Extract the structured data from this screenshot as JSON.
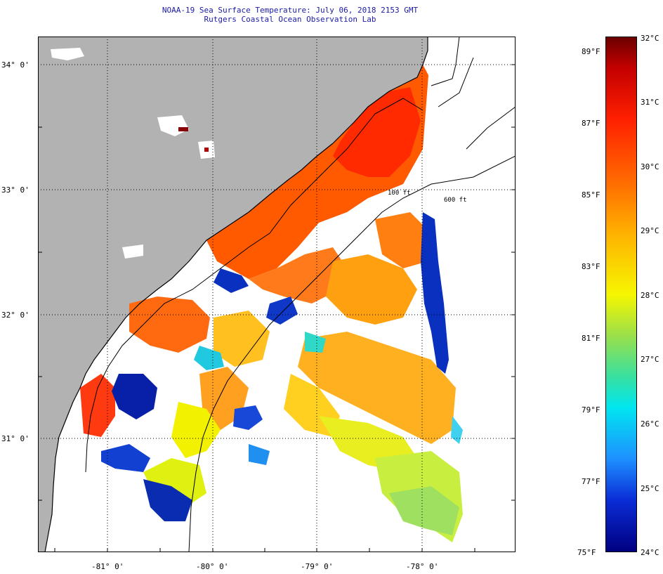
{
  "title": {
    "line1": "NOAA-19 Sea Surface Temperature:  July 06, 2018 2153 GMT",
    "line2": "Rutgers Coastal Ocean Observation Lab"
  },
  "map": {
    "lat_labels": [
      "34° 0'",
      "33° 0'",
      "32° 0'",
      "31° 0'"
    ],
    "lon_labels": [
      "-81° 0'",
      "-80° 0'",
      "-79° 0'",
      "-78° 0'"
    ],
    "isobaths": [
      "100 ft",
      "600 ft"
    ],
    "colors": {
      "land": "#b2b2b2",
      "no_data": "#ffffff",
      "coastline": "#000000"
    }
  },
  "colorbar": {
    "celsius": [
      "32°C",
      "31°C",
      "30°C",
      "29°C",
      "28°C",
      "27°C",
      "26°C",
      "25°C",
      "24°C"
    ],
    "fahrenheit": [
      "89°F",
      "87°F",
      "85°F",
      "83°F",
      "81°F",
      "79°F",
      "77°F",
      "75°F"
    ]
  }
}
